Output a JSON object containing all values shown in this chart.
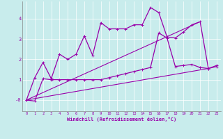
{
  "xlabel": "Windchill (Refroidissement éolien,°C)",
  "background_color": "#c8ecec",
  "line_color": "#9900aa",
  "xlim": [
    -0.5,
    23.5
  ],
  "ylim": [
    -0.55,
    4.85
  ],
  "yticks": [
    0,
    1,
    2,
    3,
    4
  ],
  "ytick_labels": [
    "-0",
    "1",
    "2",
    "3",
    "4"
  ],
  "xticks": [
    0,
    1,
    2,
    3,
    4,
    5,
    6,
    7,
    8,
    9,
    10,
    11,
    12,
    13,
    14,
    15,
    16,
    17,
    18,
    19,
    20,
    21,
    22,
    23
  ],
  "line1_x": [
    0,
    1,
    2,
    3,
    4,
    5,
    6,
    7,
    8,
    9,
    10,
    11,
    12,
    13,
    14,
    15,
    16,
    17,
    18,
    19,
    20,
    21,
    22,
    23
  ],
  "line1_y": [
    0.0,
    1.1,
    1.85,
    1.05,
    2.25,
    2.0,
    2.25,
    3.15,
    2.2,
    3.8,
    3.5,
    3.5,
    3.5,
    3.7,
    3.7,
    4.55,
    4.3,
    3.1,
    3.05,
    3.35,
    3.7,
    3.85,
    1.55,
    1.7
  ],
  "line2_x": [
    0,
    1,
    2,
    3,
    4,
    5,
    6,
    7,
    8,
    9,
    10,
    11,
    12,
    13,
    14,
    15,
    16,
    17,
    18,
    19,
    20,
    21,
    22,
    23
  ],
  "line2_y": [
    0.0,
    -0.05,
    1.05,
    1.0,
    1.0,
    1.0,
    1.0,
    1.0,
    1.0,
    1.0,
    1.1,
    1.2,
    1.3,
    1.4,
    1.5,
    1.6,
    3.3,
    3.05,
    1.65,
    1.7,
    1.75,
    1.6,
    1.55,
    1.65
  ],
  "line3_x": [
    0,
    22
  ],
  "line3_y": [
    0.0,
    1.55
  ],
  "line4_x": [
    0,
    21
  ],
  "line4_y": [
    0.0,
    3.85
  ]
}
